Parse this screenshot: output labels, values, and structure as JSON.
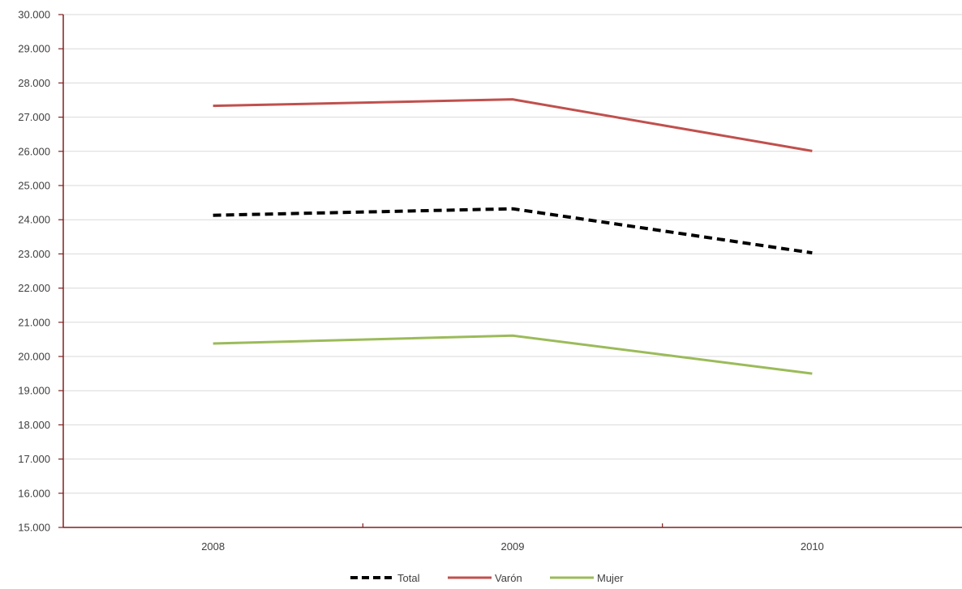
{
  "chart_data": {
    "type": "line",
    "title": "",
    "xlabel": "",
    "ylabel": "",
    "categories": [
      "2008",
      "2009",
      "2010"
    ],
    "ylim": [
      15000,
      30000
    ],
    "ytick_step": 1000,
    "ytick_labels": [
      "15.000",
      "16.000",
      "17.000",
      "18.000",
      "19.000",
      "20.000",
      "21.000",
      "22.000",
      "23.000",
      "24.000",
      "25.000",
      "26.000",
      "27.000",
      "28.000",
      "29.000",
      "30.000"
    ],
    "grid": true,
    "legend_position": "bottom",
    "series": [
      {
        "name": "Total",
        "values": [
          24130,
          24320,
          23030
        ],
        "color": "#000000",
        "style": "dashed"
      },
      {
        "name": "Varón",
        "values": [
          27330,
          27520,
          26010
        ],
        "color": "#c0504d",
        "style": "solid"
      },
      {
        "name": "Mujer",
        "values": [
          20380,
          20610,
          19500
        ],
        "color": "#9bbb59",
        "style": "solid"
      }
    ],
    "axis_color": "#7f2020",
    "grid_color": "#d9d9d9"
  }
}
